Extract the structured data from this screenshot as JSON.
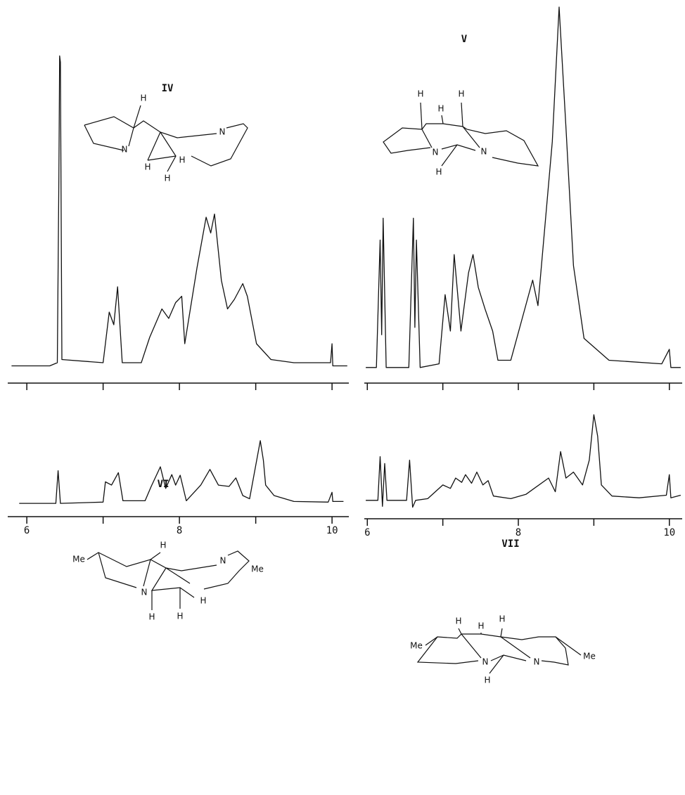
{
  "chart_data": [
    {
      "type": "line",
      "compound": "IV",
      "color": "#111111",
      "structure_labels": [
        "H",
        "N",
        "N",
        "H",
        "H",
        "H"
      ],
      "x": [
        5.8,
        6.3,
        6.4,
        6.42,
        6.43,
        6.44,
        6.46,
        7.0,
        7.08,
        7.14,
        7.19,
        7.25,
        7.5,
        7.61,
        7.77,
        7.86,
        7.95,
        8.03,
        8.07,
        8.23,
        8.35,
        8.41,
        8.46,
        8.55,
        8.63,
        8.72,
        8.83,
        8.89,
        9.01,
        9.2,
        9.5,
        9.8,
        9.98,
        10.0,
        10.01,
        10.2
      ],
      "values": [
        1,
        1,
        2,
        60,
        99,
        97,
        3,
        2,
        18,
        14,
        26,
        2,
        2,
        10,
        19,
        16,
        21,
        23,
        8,
        32,
        48,
        43,
        49,
        28,
        19,
        22,
        27,
        23,
        8,
        3,
        2,
        2,
        2,
        8,
        1,
        1
      ],
      "xlim": [
        5.75,
        10.22
      ],
      "ylim": [
        0,
        100
      ],
      "xticks": [
        6,
        7,
        8,
        9,
        10
      ]
    },
    {
      "type": "line",
      "compound": "V",
      "color": "#111111",
      "structure_labels": [
        "H",
        "H",
        "H",
        "N",
        "N",
        "H"
      ],
      "x": [
        5.98,
        6.12,
        6.17,
        6.19,
        6.21,
        6.25,
        6.55,
        6.61,
        6.63,
        6.65,
        6.7,
        6.95,
        7.03,
        7.1,
        7.15,
        7.24,
        7.34,
        7.4,
        7.47,
        7.56,
        7.66,
        7.73,
        7.9,
        8.19,
        8.26,
        8.45,
        8.54,
        8.63,
        8.73,
        8.87,
        9.2,
        9.9,
        10.0,
        10.02,
        10.15
      ],
      "values": [
        1,
        1,
        36,
        10,
        42,
        1,
        1,
        42,
        12,
        36,
        1,
        2,
        21,
        11,
        32,
        11,
        27,
        32,
        23,
        17,
        11,
        3,
        3,
        25,
        18,
        63,
        100,
        67,
        29,
        9,
        3,
        2,
        6,
        1,
        1
      ],
      "xlim": [
        5.96,
        10.17
      ],
      "ylim": [
        0,
        100
      ],
      "xticks": [
        6,
        7,
        8,
        9,
        10
      ]
    },
    {
      "type": "line",
      "compound": "VI",
      "color": "#111111",
      "structure_labels": [
        "Me",
        "H",
        "N",
        "Me",
        "N",
        "H",
        "H",
        "H"
      ],
      "x": [
        5.9,
        6.38,
        6.41,
        6.44,
        7.0,
        7.03,
        7.11,
        7.2,
        7.26,
        7.55,
        7.63,
        7.75,
        7.82,
        7.9,
        7.95,
        8.01,
        8.09,
        8.28,
        8.4,
        8.51,
        8.65,
        8.74,
        8.83,
        8.92,
        9.06,
        9.1,
        9.13,
        9.24,
        9.5,
        9.95,
        10.0,
        10.01,
        10.15
      ],
      "values": [
        2,
        2,
        52,
        2,
        4,
        35,
        30,
        49,
        6,
        6,
        28,
        58,
        25,
        46,
        30,
        45,
        6,
        30,
        54,
        30,
        28,
        41,
        14,
        9,
        98,
        68,
        30,
        14,
        5,
        4,
        19,
        5,
        5
      ],
      "xlim": [
        5.75,
        10.22
      ],
      "ylim": [
        0,
        100
      ],
      "xticks": [
        6,
        7,
        8,
        9,
        10
      ],
      "xticklabels": [
        6,
        8,
        10
      ]
    },
    {
      "type": "line",
      "compound": "VII",
      "color": "#111111",
      "structure_labels": [
        "H",
        "H",
        "H",
        "Me",
        "N",
        "N",
        "Me",
        "H"
      ],
      "x": [
        5.98,
        6.14,
        6.17,
        6.2,
        6.23,
        6.26,
        6.52,
        6.56,
        6.6,
        6.64,
        6.8,
        7.0,
        7.1,
        7.17,
        7.25,
        7.3,
        7.38,
        7.45,
        7.53,
        7.6,
        7.67,
        7.9,
        8.1,
        8.4,
        8.49,
        8.56,
        8.63,
        8.73,
        8.85,
        8.94,
        9.0,
        9.05,
        9.1,
        9.24,
        9.6,
        9.96,
        10.0,
        10.02,
        10.15
      ],
      "values": [
        0,
        0,
        51,
        -7,
        43,
        0,
        0,
        47,
        -8,
        0,
        2,
        18,
        14,
        26,
        21,
        30,
        20,
        33,
        18,
        23,
        5,
        2,
        7,
        26,
        10,
        57,
        26,
        33,
        18,
        47,
        100,
        75,
        18,
        5,
        3,
        6,
        30,
        3,
        6
      ],
      "xlim": [
        5.96,
        10.17
      ],
      "ylim": [
        -10,
        100
      ],
      "xticks": [
        6,
        7,
        8,
        9,
        10
      ],
      "xticklabels": [
        6,
        8,
        10
      ]
    }
  ]
}
